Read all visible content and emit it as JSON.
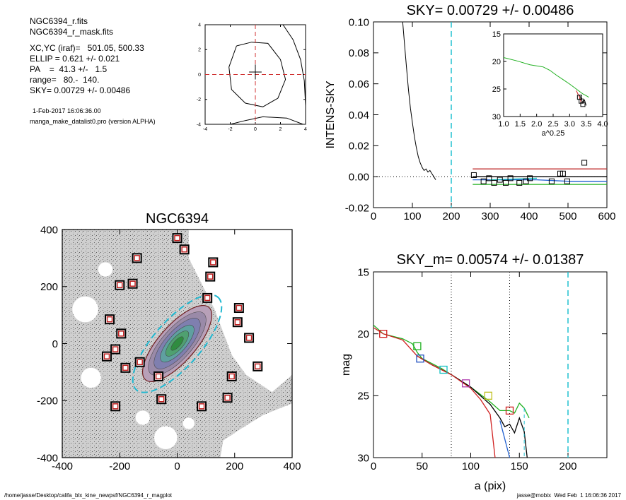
{
  "info_block": {
    "lines": [
      "NGC6394_r.fits",
      "NGC6394_r_mask.fits",
      "XC,YC (iraf)=   501.05, 500.33",
      "ELLIP = 0.621 +/- 0.021",
      "PA    =  41.3 +/-   1.5",
      "range=   80.-  140.",
      "SKY= 0.00729 +/- 0.00486"
    ],
    "date": "1-Feb-2017 16:06:36.00",
    "program": "manga_make_datalist0.pro (version ALPHA)"
  },
  "footer": {
    "path": "/home/jasse/Desktop/califa_blx_kine_newpsf/NGC6394_r_magplot",
    "stamp": "jasse@mobix  Wed Feb  1 16:06:36 2017"
  },
  "chart_data": [
    {
      "id": "center-contour",
      "type": "line",
      "xlim": [
        -4,
        4
      ],
      "ylim": [
        -4,
        4
      ],
      "xticks": [
        "-4",
        "-2",
        "0",
        "2",
        "4"
      ],
      "yticks": [
        "-4",
        "-2",
        "0",
        "2",
        "4"
      ],
      "center": [
        0,
        0
      ],
      "inner_contour": [
        [
          -1.5,
          2.3
        ],
        [
          -0.3,
          2.6
        ],
        [
          1.0,
          2.5
        ],
        [
          2.0,
          1.2
        ],
        [
          2.4,
          -0.4
        ],
        [
          1.8,
          -1.9
        ],
        [
          0.6,
          -2.6
        ],
        [
          -0.8,
          -2.3
        ],
        [
          -1.9,
          -1.2
        ],
        [
          -2.1,
          0.6
        ],
        [
          -1.5,
          2.3
        ]
      ],
      "outer_contour": [
        [
          2.2,
          4.0
        ],
        [
          3.0,
          2.8
        ],
        [
          3.6,
          1.2
        ],
        [
          3.9,
          -0.5
        ],
        [
          4.0,
          -2.5
        ]
      ],
      "lower_contour": [
        [
          -2.0,
          -4.0
        ],
        [
          -0.8,
          -3.7
        ],
        [
          0.6,
          -3.4
        ],
        [
          2.5,
          -3.5
        ],
        [
          3.8,
          -4.0
        ]
      ]
    },
    {
      "id": "sky-profile",
      "type": "line",
      "title": "SKY= 0.00729 +/- 0.00486",
      "xlabel": "",
      "ylabel": "INTENS-SKY",
      "xlim": [
        0,
        600
      ],
      "ylim": [
        -0.02,
        0.1
      ],
      "xticks": [
        "0",
        "100",
        "200",
        "300",
        "400",
        "500",
        "600"
      ],
      "yticks": [
        "-0.02",
        "0.00",
        "0.02",
        "0.04",
        "0.06",
        "0.08",
        "0.10"
      ],
      "vline": 200,
      "profile": [
        [
          75,
          0.1
        ],
        [
          80,
          0.085
        ],
        [
          85,
          0.07
        ],
        [
          90,
          0.056
        ],
        [
          95,
          0.044
        ],
        [
          100,
          0.035
        ],
        [
          105,
          0.026
        ],
        [
          110,
          0.019
        ],
        [
          115,
          0.013
        ],
        [
          120,
          0.009
        ],
        [
          125,
          0.006
        ],
        [
          130,
          0.004
        ],
        [
          135,
          0.005
        ],
        [
          140,
          0.003
        ],
        [
          145,
          0.004
        ],
        [
          150,
          0.002
        ],
        [
          155,
          0.0
        ],
        [
          160,
          -0.002
        ]
      ],
      "squares": [
        [
          258,
          0.001
        ],
        [
          283,
          -0.003
        ],
        [
          297,
          -0.001
        ],
        [
          310,
          -0.004
        ],
        [
          325,
          -0.002
        ],
        [
          340,
          -0.004
        ],
        [
          352,
          -0.001
        ],
        [
          375,
          -0.004
        ],
        [
          392,
          -0.003
        ],
        [
          402,
          -0.001
        ],
        [
          458,
          -0.003
        ],
        [
          480,
          0.002
        ],
        [
          487,
          0.002
        ],
        [
          498,
          -0.003
        ],
        [
          542,
          0.009
        ]
      ],
      "series": [
        {
          "name": "",
          "color": "#c03030",
          "values": [
            [
              255,
              0.005
            ],
            [
              600,
              0.005
            ]
          ]
        },
        {
          "name": "",
          "color": "#000000",
          "values": [
            [
              255,
              0.0
            ],
            [
              600,
              0.0
            ]
          ]
        },
        {
          "name": "",
          "color": "#2060d0",
          "values": [
            [
              255,
              -0.002
            ],
            [
              420,
              -0.002
            ],
            [
              500,
              -0.003
            ],
            [
              600,
              -0.003
            ]
          ]
        },
        {
          "name": "",
          "color": "#10c0c0",
          "values": [
            [
              300,
              -0.002
            ],
            [
              420,
              -0.001
            ]
          ]
        },
        {
          "name": "",
          "color": "#20b020",
          "values": [
            [
              255,
              -0.005
            ],
            [
              600,
              -0.005
            ]
          ]
        }
      ],
      "inset": {
        "xlabel": "a^0.25",
        "xlim": [
          1.0,
          4.0
        ],
        "ylim": [
          15,
          30
        ],
        "xticks": [
          "1.0",
          "1.5",
          "2.0",
          "2.5",
          "3.0",
          "3.5",
          "4.0"
        ],
        "yticks": [
          "15",
          "20",
          "25",
          "30"
        ],
        "green": [
          [
            1.0,
            19.3
          ],
          [
            1.4,
            19.9
          ],
          [
            1.8,
            20.6
          ],
          [
            2.2,
            21.0
          ],
          [
            2.4,
            21.6
          ],
          [
            2.6,
            22.5
          ],
          [
            2.8,
            23.3
          ],
          [
            3.0,
            24.1
          ],
          [
            3.2,
            25.0
          ],
          [
            3.4,
            25.9
          ],
          [
            3.5,
            26.2
          ],
          [
            3.58,
            26.5
          ]
        ],
        "red": [
          [
            3.2,
            25.3
          ],
          [
            3.3,
            26.5
          ],
          [
            3.35,
            27.5
          ]
        ],
        "black": [
          [
            3.3,
            26.1
          ],
          [
            3.4,
            27.5
          ],
          [
            3.45,
            27.0
          ],
          [
            3.5,
            28.0
          ]
        ],
        "squares": [
          [
            3.3,
            26.5
          ],
          [
            3.35,
            27.2
          ],
          [
            3.4,
            27.8
          ]
        ]
      }
    },
    {
      "id": "galaxy-map",
      "type": "scatter",
      "title": "NGC6394",
      "xlim": [
        -400,
        400
      ],
      "ylim": [
        -400,
        400
      ],
      "xticks": [
        "-400",
        "-200",
        "0",
        "200",
        "400"
      ],
      "yticks": [
        "-400",
        "-200",
        "0",
        "200",
        "400"
      ],
      "ellipse": {
        "semi_major": 215,
        "ellip": 0.621,
        "pa_deg": 41.3
      },
      "sky_boxes": [
        [
          -140,
          300
        ],
        [
          0,
          370
        ],
        [
          25,
          330
        ],
        [
          125,
          285
        ],
        [
          -200,
          205
        ],
        [
          -155,
          210
        ],
        [
          115,
          235
        ],
        [
          105,
          160
        ],
        [
          -235,
          85
        ],
        [
          -195,
          35
        ],
        [
          -215,
          -20
        ],
        [
          -245,
          -45
        ],
        [
          -180,
          -85
        ],
        [
          -130,
          -65
        ],
        [
          -65,
          -115
        ],
        [
          -55,
          -195
        ],
        [
          85,
          -220
        ],
        [
          -215,
          -220
        ],
        [
          215,
          125
        ],
        [
          210,
          75
        ],
        [
          250,
          20
        ],
        [
          280,
          -80
        ],
        [
          190,
          -115
        ],
        [
          175,
          -190
        ]
      ]
    },
    {
      "id": "mag-profile",
      "type": "line",
      "title": "SKY_m=  0.00574 +/- 0.01387",
      "xlabel": "a (pix)",
      "ylabel": "mag",
      "xlim": [
        0,
        240
      ],
      "ylim": [
        15,
        30
      ],
      "xticks": [
        "0",
        "50",
        "100",
        "150",
        "200"
      ],
      "yticks": [
        "15",
        "20",
        "25",
        "30"
      ],
      "vlines_dotted": [
        80,
        140
      ],
      "vline_dashed": 200,
      "series": [
        {
          "name": "",
          "color": "#20b020",
          "values": [
            [
              0,
              19.3
            ],
            [
              10,
              20.0
            ],
            [
              20,
              20.2
            ],
            [
              30,
              20.4
            ],
            [
              40,
              20.8
            ],
            [
              45,
              21.5
            ],
            [
              50,
              22.0
            ],
            [
              60,
              22.4
            ],
            [
              70,
              22.8
            ],
            [
              80,
              23.3
            ],
            [
              90,
              23.8
            ],
            [
              100,
              24.3
            ],
            [
              110,
              24.9
            ],
            [
              120,
              25.5
            ],
            [
              130,
              26.2
            ],
            [
              140,
              26.2
            ],
            [
              145,
              26.4
            ],
            [
              150,
              25.6
            ],
            [
              155,
              26.0
            ],
            [
              160,
              26.8
            ]
          ]
        },
        {
          "name": "",
          "color": "#000000",
          "values": [
            [
              45,
              21.8
            ],
            [
              60,
              22.5
            ],
            [
              80,
              23.3
            ],
            [
              100,
              24.3
            ],
            [
              120,
              25.7
            ],
            [
              130,
              26.8
            ],
            [
              135,
              27.5
            ],
            [
              140,
              27.3
            ],
            [
              145,
              28.0
            ],
            [
              150,
              26.8
            ],
            [
              155,
              27.9
            ],
            [
              158,
              30.0
            ]
          ]
        },
        {
          "name": "",
          "color": "#d02020",
          "values": [
            [
              0,
              19.5
            ],
            [
              10,
              20.0
            ],
            [
              30,
              20.5
            ],
            [
              45,
              21.8
            ],
            [
              60,
              22.5
            ],
            [
              80,
              23.3
            ],
            [
              100,
              24.4
            ],
            [
              110,
              25.3
            ],
            [
              120,
              26.5
            ],
            [
              125,
              30.0
            ]
          ]
        },
        {
          "name": "",
          "color": "#2060d0",
          "values": [
            [
              130,
              27.0
            ],
            [
              140,
              30.0
            ]
          ]
        }
      ],
      "squares": [
        {
          "x": 10,
          "y": 20.0,
          "color": "#d02020"
        },
        {
          "x": 45,
          "y": 21.0,
          "color": "#20b020"
        },
        {
          "x": 48,
          "y": 22.0,
          "color": "#2050c0"
        },
        {
          "x": 72,
          "y": 22.9,
          "color": "#10c0c0"
        },
        {
          "x": 95,
          "y": 24.0,
          "color": "#b040b0"
        },
        {
          "x": 118,
          "y": 25.0,
          "color": "#c0c020"
        },
        {
          "x": 140,
          "y": 26.2,
          "color": "#d02020"
        }
      ]
    }
  ]
}
